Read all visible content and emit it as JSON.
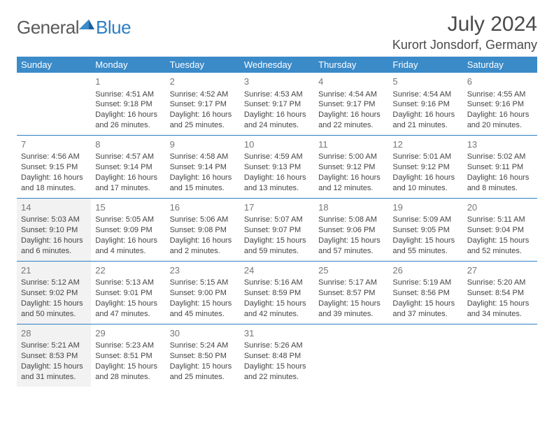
{
  "logo": {
    "general": "General",
    "blue": "Blue"
  },
  "title": "July 2024",
  "location": "Kurort Jonsdorf, Germany",
  "colors": {
    "header_bg": "#3b8bc9",
    "header_text": "#ffffff",
    "border": "#2d7fc4",
    "shaded": "#f2f2f2",
    "text": "#444444",
    "daynum": "#777777"
  },
  "weekdays": [
    "Sunday",
    "Monday",
    "Tuesday",
    "Wednesday",
    "Thursday",
    "Friday",
    "Saturday"
  ],
  "weeks": [
    [
      null,
      {
        "n": "1",
        "sr": "4:51 AM",
        "ss": "9:18 PM",
        "dl": "16 hours and 26 minutes."
      },
      {
        "n": "2",
        "sr": "4:52 AM",
        "ss": "9:17 PM",
        "dl": "16 hours and 25 minutes."
      },
      {
        "n": "3",
        "sr": "4:53 AM",
        "ss": "9:17 PM",
        "dl": "16 hours and 24 minutes."
      },
      {
        "n": "4",
        "sr": "4:54 AM",
        "ss": "9:17 PM",
        "dl": "16 hours and 22 minutes."
      },
      {
        "n": "5",
        "sr": "4:54 AM",
        "ss": "9:16 PM",
        "dl": "16 hours and 21 minutes."
      },
      {
        "n": "6",
        "sr": "4:55 AM",
        "ss": "9:16 PM",
        "dl": "16 hours and 20 minutes."
      }
    ],
    [
      {
        "n": "7",
        "sr": "4:56 AM",
        "ss": "9:15 PM",
        "dl": "16 hours and 18 minutes."
      },
      {
        "n": "8",
        "sr": "4:57 AM",
        "ss": "9:14 PM",
        "dl": "16 hours and 17 minutes."
      },
      {
        "n": "9",
        "sr": "4:58 AM",
        "ss": "9:14 PM",
        "dl": "16 hours and 15 minutes."
      },
      {
        "n": "10",
        "sr": "4:59 AM",
        "ss": "9:13 PM",
        "dl": "16 hours and 13 minutes."
      },
      {
        "n": "11",
        "sr": "5:00 AM",
        "ss": "9:12 PM",
        "dl": "16 hours and 12 minutes."
      },
      {
        "n": "12",
        "sr": "5:01 AM",
        "ss": "9:12 PM",
        "dl": "16 hours and 10 minutes."
      },
      {
        "n": "13",
        "sr": "5:02 AM",
        "ss": "9:11 PM",
        "dl": "16 hours and 8 minutes."
      }
    ],
    [
      {
        "n": "14",
        "sr": "5:03 AM",
        "ss": "9:10 PM",
        "dl": "16 hours and 6 minutes.",
        "sh": true
      },
      {
        "n": "15",
        "sr": "5:05 AM",
        "ss": "9:09 PM",
        "dl": "16 hours and 4 minutes."
      },
      {
        "n": "16",
        "sr": "5:06 AM",
        "ss": "9:08 PM",
        "dl": "16 hours and 2 minutes."
      },
      {
        "n": "17",
        "sr": "5:07 AM",
        "ss": "9:07 PM",
        "dl": "15 hours and 59 minutes."
      },
      {
        "n": "18",
        "sr": "5:08 AM",
        "ss": "9:06 PM",
        "dl": "15 hours and 57 minutes."
      },
      {
        "n": "19",
        "sr": "5:09 AM",
        "ss": "9:05 PM",
        "dl": "15 hours and 55 minutes."
      },
      {
        "n": "20",
        "sr": "5:11 AM",
        "ss": "9:04 PM",
        "dl": "15 hours and 52 minutes."
      }
    ],
    [
      {
        "n": "21",
        "sr": "5:12 AM",
        "ss": "9:02 PM",
        "dl": "15 hours and 50 minutes.",
        "sh": true
      },
      {
        "n": "22",
        "sr": "5:13 AM",
        "ss": "9:01 PM",
        "dl": "15 hours and 47 minutes."
      },
      {
        "n": "23",
        "sr": "5:15 AM",
        "ss": "9:00 PM",
        "dl": "15 hours and 45 minutes."
      },
      {
        "n": "24",
        "sr": "5:16 AM",
        "ss": "8:59 PM",
        "dl": "15 hours and 42 minutes."
      },
      {
        "n": "25",
        "sr": "5:17 AM",
        "ss": "8:57 PM",
        "dl": "15 hours and 39 minutes."
      },
      {
        "n": "26",
        "sr": "5:19 AM",
        "ss": "8:56 PM",
        "dl": "15 hours and 37 minutes."
      },
      {
        "n": "27",
        "sr": "5:20 AM",
        "ss": "8:54 PM",
        "dl": "15 hours and 34 minutes."
      }
    ],
    [
      {
        "n": "28",
        "sr": "5:21 AM",
        "ss": "8:53 PM",
        "dl": "15 hours and 31 minutes.",
        "sh": true
      },
      {
        "n": "29",
        "sr": "5:23 AM",
        "ss": "8:51 PM",
        "dl": "15 hours and 28 minutes."
      },
      {
        "n": "30",
        "sr": "5:24 AM",
        "ss": "8:50 PM",
        "dl": "15 hours and 25 minutes."
      },
      {
        "n": "31",
        "sr": "5:26 AM",
        "ss": "8:48 PM",
        "dl": "15 hours and 22 minutes."
      },
      null,
      null,
      null
    ]
  ],
  "labels": {
    "sunrise": "Sunrise:",
    "sunset": "Sunset:",
    "daylight": "Daylight:"
  }
}
